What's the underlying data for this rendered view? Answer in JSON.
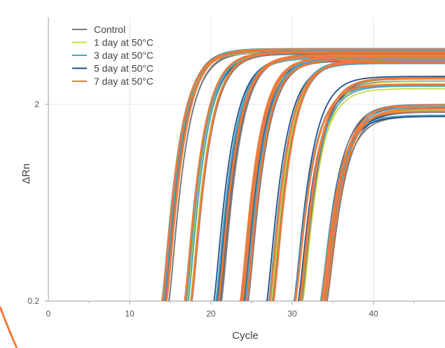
{
  "chart_data": {
    "type": "line",
    "xlabel": "Cycle",
    "ylabel": "ΔRn",
    "xlim": [
      0,
      49
    ],
    "ylim": [
      0.2,
      4.2
    ],
    "y_scale": "log",
    "x_ticks": [
      0,
      10,
      20,
      30,
      40
    ],
    "y_ticks": [
      0.2,
      2
    ],
    "y_tick_labels": [
      "0.2",
      "2"
    ],
    "grid": true,
    "legend_position": "top-left",
    "series": [
      {
        "name": "Control",
        "color": "#7a7a7a"
      },
      {
        "name": "1 day at 50°C",
        "color": "#c8d94a"
      },
      {
        "name": "3 day at 50°C",
        "color": "#4aa3c0"
      },
      {
        "name": "5 day at 50°C",
        "color": "#1f4e8c"
      },
      {
        "name": "7 day at 50°C",
        "color": "#f07a3a"
      }
    ],
    "curve_groups": [
      {
        "ct": 14.2,
        "plateau": 3.75
      },
      {
        "ct": 17.2,
        "plateau": 3.65
      },
      {
        "ct": 20.8,
        "plateau": 3.5
      },
      {
        "ct": 24.0,
        "plateau": 3.4
      },
      {
        "ct": 27.3,
        "plateau": 3.3
      },
      {
        "ct": 30.6,
        "plateau": 2.6
      },
      {
        "ct": 33.7,
        "plateau": 1.85
      }
    ]
  }
}
